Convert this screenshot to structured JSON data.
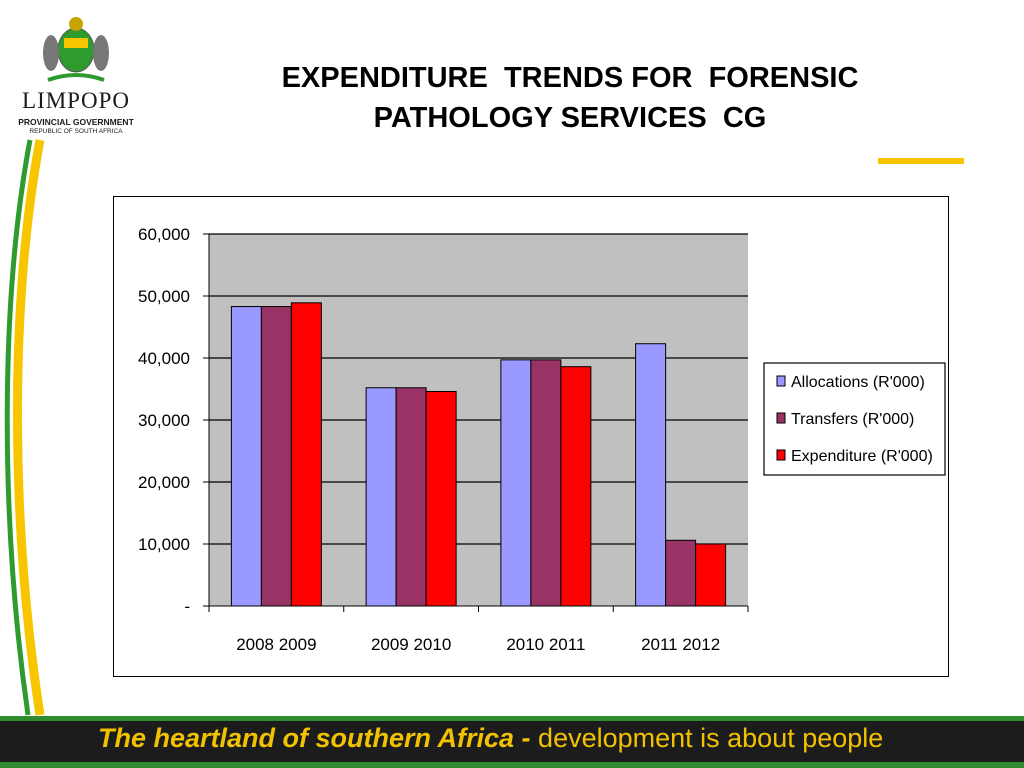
{
  "logo": {
    "name": "LIMPOPO",
    "line1": "PROVINCIAL GOVERNMENT",
    "line2": "REPUBLIC OF SOUTH AFRICA"
  },
  "title": {
    "line1": "EXPENDITURE  TRENDS FOR  FORENSIC",
    "line2": "PATHOLOGY SERVICES  CG"
  },
  "colors": {
    "accent_yellow": "#f7c600",
    "swoosh_green": "#2e9b2e",
    "footer_bg": "#1c1c1c",
    "footer_text": "#f2c200"
  },
  "footer": {
    "bold_text": "The heartland of southern Africa - ",
    "light_text": "development is about people"
  },
  "chart_data": {
    "type": "bar",
    "categories": [
      "2008 2009",
      "2009 2010",
      "2010 2011",
      "2011 2012"
    ],
    "series": [
      {
        "name": "Allocations (R'000)",
        "color": "#9999ff",
        "values": [
          48300,
          35200,
          39700,
          42300
        ]
      },
      {
        "name": "Transfers (R'000)",
        "color": "#993366",
        "values": [
          48300,
          35200,
          39700,
          10600
        ]
      },
      {
        "name": "Expenditure (R'000)",
        "color": "#ff0000",
        "values": [
          48900,
          34600,
          38600,
          10000
        ]
      }
    ],
    "yticks": [
      "-",
      "10,000",
      "20,000",
      "30,000",
      "40,000",
      "50,000",
      "60,000"
    ],
    "ylim": [
      0,
      60000
    ],
    "grid": true,
    "plot_background": "#c0c0c0",
    "legend_position": "right"
  }
}
